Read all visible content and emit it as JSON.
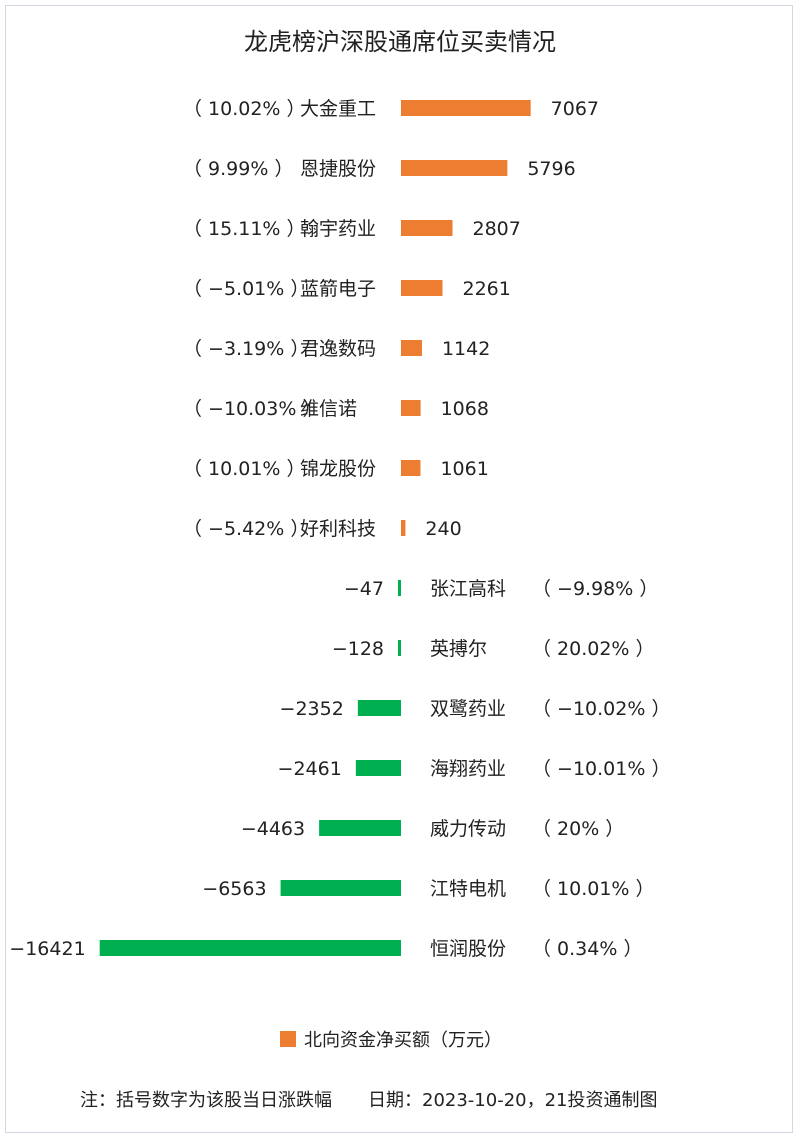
{
  "title": "龙虎榜沪深股通席位买卖情况",
  "legend": {
    "label": "北向资金净买额（万元）"
  },
  "colors": {
    "positive": "#ED7D31",
    "negative": "#00B050"
  },
  "footer": {
    "note": "注：括号数字为该股当日涨跌幅",
    "date": "日期：2023-10-20，21投资通制图"
  },
  "chart_data": {
    "type": "bar",
    "orientation": "horizontal",
    "series_name": "北向资金净买额（万元）",
    "categories": [
      "大金重工",
      "恩捷股份",
      "翰宇药业",
      "蓝箭电子",
      "君逸数码",
      "维信诺",
      "锦龙股份",
      "好利科技",
      "张江高科",
      "英搏尔",
      "双鹭药业",
      "海翔药业",
      "威力传动",
      "江特电机",
      "恒润股份"
    ],
    "values": [
      7067,
      5796,
      2807,
      2261,
      1142,
      1068,
      1061,
      240,
      -47,
      -128,
      -2352,
      -2461,
      -4463,
      -6563,
      -16421
    ],
    "change_labels": [
      "（ 10.02% ）",
      "（ 9.99% ）",
      "（ 15.11% ）",
      "（ −5.01% ）",
      "（ −3.19% ）",
      "（ −10.03% ）",
      "（ 10.01% ）",
      "（ −5.42% ）",
      "（ −9.98% ）",
      "（ 20.02% ）",
      "（ −10.02% ）",
      "（ −10.01% ）",
      "（ 20% ）",
      "（ 10.01% ）",
      "（ 0.34% ）"
    ],
    "value_labels": [
      "7067",
      "5796",
      "2807",
      "2261",
      "1142",
      "1068",
      "1061",
      "240",
      "−47",
      "−128",
      "−2352",
      "−2461",
      "−4463",
      "−6563",
      "−16421"
    ]
  }
}
